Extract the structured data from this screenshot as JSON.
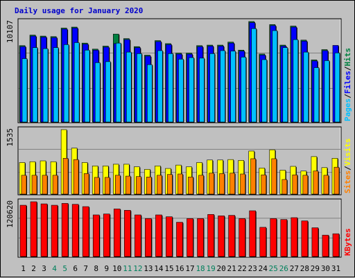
{
  "title": "Daily usage for January 2020",
  "colors": {
    "background": "#c0c0c0",
    "pages": "#00c0ff",
    "files": "#0000ff",
    "hits": "#008040",
    "sites": "#ff8000",
    "visits": "#ffff00",
    "kbytes": "#ff0000",
    "weekday_label": "#000000",
    "weekend_label": "#00805c",
    "title": "#0000cc"
  },
  "panels": {
    "top": {
      "ymax_label": "10107",
      "legend": [
        {
          "text": "Pages",
          "color": "#00c0ff"
        },
        {
          "text": "/",
          "color": "#000000"
        },
        {
          "text": "Files",
          "color": "#0000ff"
        },
        {
          "text": "/",
          "color": "#000000"
        },
        {
          "text": "Hits",
          "color": "#008040"
        }
      ]
    },
    "middle": {
      "ymax_label": "1535",
      "legend": [
        {
          "text": "Sites",
          "color": "#ff8000"
        },
        {
          "text": "/",
          "color": "#000000"
        },
        {
          "text": "Visits",
          "color": "#ffff00"
        }
      ]
    },
    "bottom": {
      "ymax_label": "120620",
      "legend": [
        {
          "text": "KBytes",
          "color": "#ff0000"
        }
      ]
    }
  },
  "chart_data": {
    "type": "bar",
    "title": "Daily usage for January 2020",
    "categories": [
      "1",
      "2",
      "3",
      "4",
      "5",
      "6",
      "7",
      "8",
      "9",
      "10",
      "11",
      "12",
      "13",
      "14",
      "15",
      "16",
      "17",
      "18",
      "19",
      "20",
      "21",
      "22",
      "23",
      "24",
      "25",
      "26",
      "27",
      "28",
      "29",
      "30",
      "31"
    ],
    "weekend_days": [
      "4",
      "5",
      "11",
      "12",
      "18",
      "19",
      "25",
      "26"
    ],
    "panels": [
      {
        "name": "Hits / Files / Pages",
        "ymax": 10107,
        "series": [
          {
            "name": "Hits",
            "values": [
              7700,
              8750,
              8650,
              8600,
              9450,
              9550,
              7950,
              7350,
              7650,
              8850,
              8400,
              7600,
              6750,
              8200,
              7900,
              6950,
              6950,
              7700,
              7750,
              7750,
              8050,
              7250,
              10107,
              6860,
              9800,
              7750,
              9650,
              8250,
              6270,
              7300,
              null
            ]
          },
          {
            "name": "Files",
            "values": [
              7600,
              8650,
              8550,
              8500,
              9350,
              9450,
              7850,
              7250,
              7550,
              7900,
              8300,
              7500,
              6650,
              8100,
              7800,
              6850,
              6850,
              7600,
              7650,
              7650,
              7950,
              7150,
              10000,
              6760,
              9700,
              7650,
              9550,
              8150,
              6170,
              7200,
              7720
            ]
          },
          {
            "name": "Pages",
            "values": [
              6400,
              7500,
              7400,
              7500,
              7800,
              8000,
              7250,
              6000,
              6100,
              7950,
              7050,
              6900,
              5800,
              7200,
              6900,
              6350,
              6500,
              6450,
              6900,
              7200,
              7150,
              6550,
              9400,
              6300,
              9200,
              7500,
              8300,
              7050,
              5500,
              6200,
              6970
            ]
          }
        ]
      },
      {
        "name": "Visits / Sites",
        "ymax": 1535,
        "series": [
          {
            "name": "Visits",
            "values": [
              760,
              780,
              800,
              780,
              1535,
              1100,
              760,
              680,
              680,
              720,
              720,
              660,
              600,
              680,
              620,
              700,
              660,
              760,
              820,
              820,
              830,
              810,
              1030,
              630,
              1060,
              580,
              670,
              560,
              900,
              640,
              860
            ]
          },
          {
            "name": "Sites",
            "values": [
              460,
              460,
              460,
              460,
              860,
              830,
              500,
              410,
              410,
              460,
              440,
              430,
              420,
              460,
              480,
              490,
              420,
              460,
              510,
              500,
              510,
              490,
              850,
              470,
              850,
              360,
              470,
              460,
              560,
              460,
              650
            ]
          }
        ]
      },
      {
        "name": "KBytes",
        "ymax": 120620,
        "series": [
          {
            "name": "KBytes",
            "values": [
              113000,
              120620,
              116000,
              113000,
              117000,
              115000,
              110000,
              92000,
              94000,
              105000,
              102000,
              92000,
              84000,
              92000,
              88000,
              76000,
              84000,
              84000,
              93000,
              90000,
              91000,
              84000,
              101000,
              65000,
              84000,
              82000,
              86000,
              79000,
              64000,
              48000,
              51000
            ]
          }
        ]
      }
    ]
  }
}
